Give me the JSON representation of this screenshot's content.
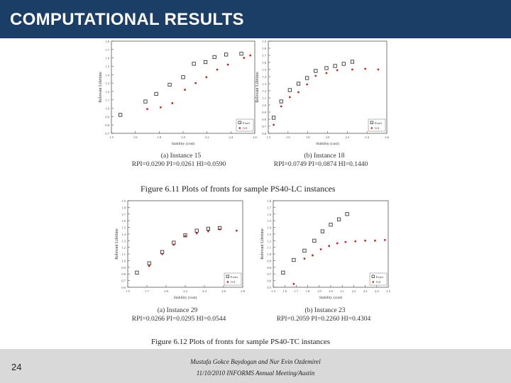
{
  "slide": {
    "title": "COMPUTATIONAL RESULTS",
    "page_number": "24",
    "footer_authors": "Mustafa Gokce Baydogan and Nur Evin Ozdemirel",
    "footer_event": "11/10/2010 INFORMS Annual Meeting/Austin"
  },
  "figures": [
    {
      "caption": "Figure 6.11 Plots of fronts for sample PS40-LC instances"
    },
    {
      "caption": "Figure 6.12 Plots of fronts for sample PS40-TC instances"
    }
  ],
  "colors": {
    "title_bar": "#1b3e66",
    "exact": "#222222",
    "ga": "#cc2222",
    "footer": "#d9d9d9"
  },
  "chart_data": [
    {
      "type": "scatter",
      "subcaption": "(a) Instance 15",
      "metrics": "RPI=0.0290 PI=0.0261 HI=0.0590",
      "xlabel": "Stability (cost)",
      "ylabel": "Relevant Lifetime",
      "xlim": [
        1.5,
        3.1
      ],
      "ylim": [
        0.7,
        1.8
      ],
      "xticks": [
        "1.5",
        "1.6",
        "1.8",
        "2.0",
        "2.2",
        "2.4",
        "2.6"
      ],
      "yticks": [
        "1.8",
        "1.7",
        "1.6",
        "1.5",
        "1.4",
        "1.3",
        "1.2",
        "1.1",
        "1.0",
        "0.9",
        "0.8",
        "0.7"
      ],
      "series": [
        {
          "name": "Exact",
          "marker": "square",
          "x": [
            1.6,
            1.88,
            2.0,
            2.15,
            2.3,
            2.42,
            2.55,
            2.65,
            2.78,
            2.95
          ],
          "y": [
            0.92,
            1.08,
            1.17,
            1.28,
            1.37,
            1.53,
            1.55,
            1.61,
            1.64,
            1.65
          ]
        },
        {
          "name": "GA",
          "marker": "dot",
          "x": [
            1.9,
            2.05,
            2.18,
            2.32,
            2.44,
            2.56,
            2.68,
            2.8,
            2.98,
            3.05
          ],
          "y": [
            0.99,
            1.01,
            1.06,
            1.22,
            1.3,
            1.37,
            1.46,
            1.52,
            1.6,
            1.63
          ]
        }
      ]
    },
    {
      "type": "scatter",
      "subcaption": "(b) Instance 18",
      "metrics": "RPI=0.0749 PI=0.0874 HI=0.1440",
      "xlabel": "Stability (cost)",
      "ylabel": "Relevant Lifetime",
      "xlim": [
        1.5,
        2.6
      ],
      "ylim": [
        0.6,
        1.9
      ],
      "xticks": [
        "1.5",
        "1.6",
        "1.8",
        "2.0",
        "2.2",
        "2.4",
        "2.6"
      ],
      "yticks": [
        "1.9",
        "1.8",
        "1.7",
        "1.6",
        "1.5",
        "1.4",
        "1.3",
        "1.2",
        "1.1",
        "1.0",
        "0.9",
        "0.8",
        "0.7",
        "0.6"
      ],
      "series": [
        {
          "name": "Exact",
          "marker": "square",
          "x": [
            1.55,
            1.62,
            1.7,
            1.78,
            1.86,
            1.94,
            2.04,
            2.12,
            2.2,
            2.28
          ],
          "y": [
            0.82,
            1.05,
            1.21,
            1.3,
            1.38,
            1.48,
            1.52,
            1.55,
            1.58,
            1.61
          ]
        },
        {
          "name": "GA",
          "marker": "dot",
          "x": [
            1.55,
            1.62,
            1.7,
            1.78,
            1.86,
            1.94,
            2.04,
            2.14,
            2.28,
            2.4,
            2.52
          ],
          "y": [
            0.72,
            0.98,
            1.11,
            1.18,
            1.29,
            1.41,
            1.45,
            1.49,
            1.5,
            1.51,
            1.5
          ]
        }
      ]
    },
    {
      "type": "scatter",
      "subcaption": "(a) Instance 29",
      "metrics": "RPI=0.0266 PI=0.0295 HI=0.0544",
      "xlabel": "Stability (cost)",
      "ylabel": "Relevant Lifetime",
      "xlim": [
        1.5,
        3.0
      ],
      "ylim": [
        0.6,
        1.9
      ],
      "xticks": [
        "1.5",
        "1.7",
        "2.0",
        "2.2",
        "2.4",
        "2.6",
        "2.8"
      ],
      "yticks": [
        "1.9",
        "1.8",
        "1.7",
        "1.6",
        "1.5",
        "1.4",
        "1.3",
        "1.2",
        "1.1",
        "1.0",
        "0.9",
        "0.8",
        "0.7",
        "0.6"
      ],
      "series": [
        {
          "name": "Exact",
          "marker": "square",
          "x": [
            1.62,
            1.78,
            1.95,
            2.1,
            2.25,
            2.4,
            2.55,
            2.7
          ],
          "y": [
            0.82,
            0.96,
            1.13,
            1.27,
            1.38,
            1.45,
            1.48,
            1.49
          ]
        },
        {
          "name": "GA",
          "marker": "dot",
          "x": [
            1.78,
            1.95,
            2.1,
            2.25,
            2.4,
            2.55,
            2.7,
            2.92
          ],
          "y": [
            0.92,
            1.1,
            1.24,
            1.37,
            1.41,
            1.44,
            1.47,
            1.45
          ]
        }
      ]
    },
    {
      "type": "scatter",
      "subcaption": "(b) Instance 23",
      "metrics": "RPI=0.2059 PI=0.2260 HI=0.4304",
      "xlabel": "Stability (cost)",
      "ylabel": "Relevant Lifetime",
      "xlim": [
        1.5,
        2.9
      ],
      "ylim": [
        0.5,
        1.8
      ],
      "xticks": [
        "1.5",
        "1.6",
        "1.7",
        "1.8",
        "1.9",
        "2.0",
        "2.1",
        "2.2",
        "2.3",
        "2.4",
        "2.5"
      ],
      "yticks": [
        "1.8",
        "1.7",
        "1.6",
        "1.5",
        "1.4",
        "1.3",
        "1.2",
        "1.1",
        "1.0",
        "0.9",
        "0.8",
        "0.7",
        "0.6",
        "0.5"
      ],
      "series": [
        {
          "name": "Exact",
          "marker": "square",
          "x": [
            1.62,
            1.75,
            1.88,
            2.0,
            2.1,
            2.2,
            2.3,
            2.4
          ],
          "y": [
            0.72,
            0.91,
            1.05,
            1.2,
            1.34,
            1.44,
            1.52,
            1.6
          ]
        },
        {
          "name": "GA",
          "marker": "dot",
          "x": [
            1.75,
            1.88,
            1.98,
            2.08,
            2.18,
            2.28,
            2.38,
            2.5,
            2.62,
            2.74,
            2.86
          ],
          "y": [
            0.55,
            0.93,
            0.98,
            1.07,
            1.12,
            1.16,
            1.18,
            1.19,
            1.2,
            1.2,
            1.21
          ]
        }
      ]
    }
  ]
}
